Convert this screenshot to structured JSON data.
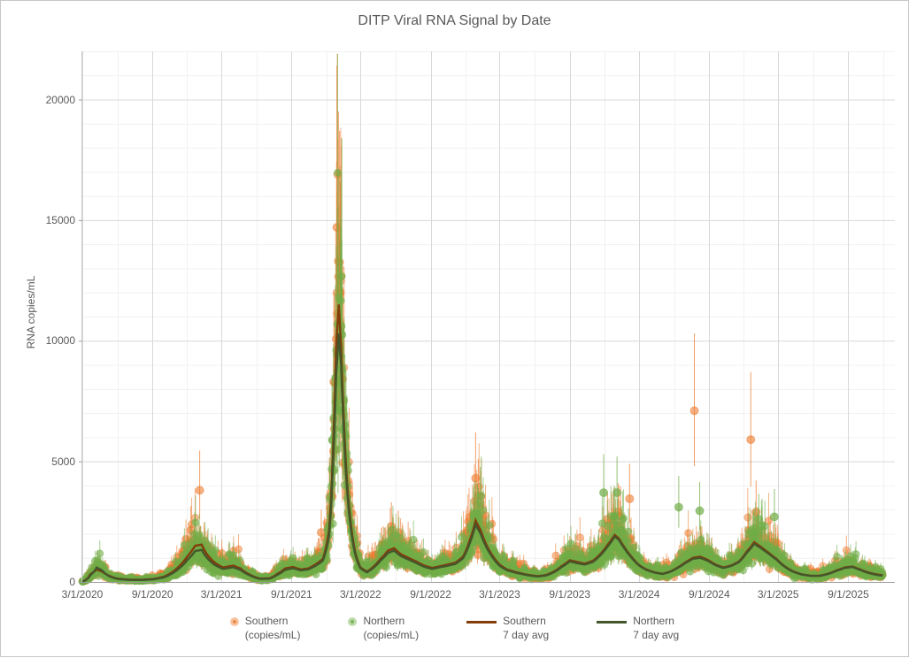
{
  "chart_data": {
    "type": "scatter",
    "title": "DITP Viral RNA Signal by Date",
    "ylabel": "RNA copies/mL",
    "xlabel": "",
    "ylim": [
      0,
      22000
    ],
    "y_ticks": [
      0,
      5000,
      10000,
      15000,
      20000
    ],
    "y_minor_step": 1000,
    "x_ticks": [
      "3/1/2020",
      "9/1/2020",
      "3/1/2021",
      "9/1/2021",
      "3/1/2022",
      "9/1/2022",
      "3/1/2023",
      "9/1/2023",
      "3/1/2024",
      "9/1/2024",
      "3/1/2025",
      "9/1/2025"
    ],
    "x_range": [
      "2020-03-01",
      "2026-01-01"
    ],
    "data_range": [
      "2020-03-01",
      "2025-11-30"
    ],
    "grid": {
      "major_color": "#D8D8D8",
      "minor_color": "#F1F1F1",
      "axis_color": "#9C9C9C",
      "y_axis_color": "#C9C9C9",
      "legend_position": "bottom",
      "grid_on": true
    },
    "text_color": "#595959",
    "series": [
      {
        "id": "southern_points",
        "name": "Southern (copies/mL)",
        "legend_lines": [
          "Southern",
          "(copies/mL)"
        ],
        "marker": "circle",
        "color": "#ED7D31",
        "fill_alpha": 0.5
      },
      {
        "id": "northern_points",
        "name": "Northern (copies/mL)",
        "legend_lines": [
          "Northern",
          "(copies/mL)"
        ],
        "marker": "circle",
        "color": "#70AD47",
        "fill_alpha": 0.6
      },
      {
        "id": "southern_avg",
        "name": "Southern 7 day avg",
        "legend_lines": [
          "Southern",
          "7 day avg"
        ],
        "marker": "line",
        "color": "#843C0B"
      },
      {
        "id": "northern_avg",
        "name": "Northern 7 day avg",
        "legend_lines": [
          "Northern",
          "7 day avg"
        ],
        "marker": "line",
        "color": "#45562B"
      }
    ],
    "error_bar_ratio": {
      "hi": 1.45,
      "lo": 0.672
    },
    "avg_breakpoints": [
      [
        "2020-03-01",
        25,
        20
      ],
      [
        "2020-03-12",
        120,
        100
      ],
      [
        "2020-03-22",
        320,
        280
      ],
      [
        "2020-04-08",
        520,
        600
      ],
      [
        "2020-04-22",
        430,
        480
      ],
      [
        "2020-05-10",
        260,
        240
      ],
      [
        "2020-06-01",
        140,
        125
      ],
      [
        "2020-07-01",
        95,
        85
      ],
      [
        "2020-08-01",
        90,
        80
      ],
      [
        "2020-09-01",
        120,
        105
      ],
      [
        "2020-10-01",
        220,
        190
      ],
      [
        "2020-10-20",
        380,
        330
      ],
      [
        "2020-11-10",
        650,
        560
      ],
      [
        "2020-12-01",
        1050,
        900
      ],
      [
        "2020-12-22",
        1500,
        1280
      ],
      [
        "2021-01-08",
        1550,
        1330
      ],
      [
        "2021-01-22",
        1150,
        1000
      ],
      [
        "2021-02-10",
        820,
        720
      ],
      [
        "2021-03-05",
        600,
        540
      ],
      [
        "2021-04-01",
        680,
        610
      ],
      [
        "2021-04-20",
        560,
        500
      ],
      [
        "2021-05-15",
        300,
        270
      ],
      [
        "2021-06-10",
        140,
        125
      ],
      [
        "2021-07-05",
        150,
        135
      ],
      [
        "2021-07-25",
        330,
        290
      ],
      [
        "2021-08-15",
        560,
        500
      ],
      [
        "2021-09-05",
        620,
        570
      ],
      [
        "2021-09-25",
        520,
        480
      ],
      [
        "2021-10-15",
        560,
        520
      ],
      [
        "2021-11-05",
        750,
        690
      ],
      [
        "2021-11-22",
        950,
        880
      ],
      [
        "2021-12-08",
        2100,
        1850
      ],
      [
        "2021-12-18",
        5200,
        4600
      ],
      [
        "2021-12-27",
        9800,
        8600
      ],
      [
        "2022-01-03",
        11500,
        10300
      ],
      [
        "2022-01-09",
        9800,
        9000
      ],
      [
        "2022-01-16",
        6800,
        6300
      ],
      [
        "2022-01-24",
        4300,
        4000
      ],
      [
        "2022-02-03",
        2500,
        2300
      ],
      [
        "2022-02-15",
        1250,
        1150
      ],
      [
        "2022-03-01",
        600,
        560
      ],
      [
        "2022-03-18",
        430,
        400
      ],
      [
        "2022-04-05",
        650,
        600
      ],
      [
        "2022-04-22",
        950,
        880
      ],
      [
        "2022-05-12",
        1300,
        1200
      ],
      [
        "2022-05-28",
        1400,
        1300
      ],
      [
        "2022-06-15",
        1150,
        1070
      ],
      [
        "2022-07-05",
        1000,
        930
      ],
      [
        "2022-07-25",
        850,
        790
      ],
      [
        "2022-08-15",
        680,
        630
      ],
      [
        "2022-09-05",
        580,
        540
      ],
      [
        "2022-09-25",
        650,
        610
      ],
      [
        "2022-10-15",
        720,
        670
      ],
      [
        "2022-11-05",
        800,
        750
      ],
      [
        "2022-11-25",
        1050,
        980
      ],
      [
        "2022-12-12",
        1700,
        1580
      ],
      [
        "2022-12-28",
        2550,
        2380
      ],
      [
        "2023-01-10",
        2150,
        2000
      ],
      [
        "2023-01-25",
        1550,
        1450
      ],
      [
        "2023-02-10",
        1100,
        1030
      ],
      [
        "2023-03-01",
        720,
        670
      ],
      [
        "2023-03-20",
        520,
        490
      ],
      [
        "2023-04-10",
        420,
        390
      ],
      [
        "2023-05-01",
        340,
        320
      ],
      [
        "2023-05-20",
        280,
        260
      ],
      [
        "2023-06-10",
        240,
        225
      ],
      [
        "2023-07-01",
        290,
        270
      ],
      [
        "2023-07-20",
        420,
        390
      ],
      [
        "2023-08-10",
        650,
        610
      ],
      [
        "2023-09-01",
        900,
        850
      ],
      [
        "2023-09-20",
        830,
        780
      ],
      [
        "2023-10-10",
        760,
        720
      ],
      [
        "2023-11-01",
        880,
        830
      ],
      [
        "2023-11-20",
        1150,
        1100
      ],
      [
        "2023-12-10",
        1550,
        1480
      ],
      [
        "2023-12-28",
        1950,
        1880
      ],
      [
        "2024-01-08",
        1800,
        1750
      ],
      [
        "2024-01-22",
        1450,
        1400
      ],
      [
        "2024-02-10",
        1050,
        1010
      ],
      [
        "2024-03-01",
        700,
        680
      ],
      [
        "2024-03-20",
        520,
        500
      ],
      [
        "2024-04-10",
        400,
        390
      ],
      [
        "2024-05-01",
        340,
        330
      ],
      [
        "2024-05-20",
        420,
        410
      ],
      [
        "2024-06-10",
        600,
        580
      ],
      [
        "2024-07-01",
        820,
        790
      ],
      [
        "2024-07-20",
        1000,
        960
      ],
      [
        "2024-08-08",
        1050,
        1000
      ],
      [
        "2024-08-28",
        920,
        880
      ],
      [
        "2024-09-18",
        720,
        690
      ],
      [
        "2024-10-08",
        600,
        580
      ],
      [
        "2024-10-28",
        680,
        660
      ],
      [
        "2024-11-18",
        850,
        820
      ],
      [
        "2024-12-08",
        1250,
        1200
      ],
      [
        "2024-12-28",
        1650,
        1580
      ],
      [
        "2025-01-15",
        1450,
        1400
      ],
      [
        "2025-02-05",
        1200,
        1160
      ],
      [
        "2025-02-25",
        950,
        920
      ],
      [
        "2025-03-18",
        650,
        630
      ],
      [
        "2025-04-08",
        450,
        430
      ],
      [
        "2025-05-01",
        320,
        310
      ],
      [
        "2025-05-25",
        260,
        250
      ],
      [
        "2025-06-18",
        260,
        250
      ],
      [
        "2025-07-10",
        340,
        330
      ],
      [
        "2025-08-01",
        480,
        460
      ],
      [
        "2025-08-22",
        600,
        580
      ],
      [
        "2025-09-12",
        640,
        620
      ],
      [
        "2025-10-02",
        520,
        500
      ],
      [
        "2025-10-22",
        400,
        380
      ],
      [
        "2025-11-12",
        320,
        300
      ],
      [
        "2025-11-30",
        280,
        260
      ]
    ],
    "outliers": [
      [
        "2020-12-11",
        "S",
        2150,
        1450,
        3150
      ],
      [
        "2021-01-03",
        "S",
        3800,
        2600,
        5450
      ],
      [
        "2021-11-18",
        "S",
        2050,
        1400,
        3000
      ],
      [
        "2021-12-21",
        "S",
        8300,
        5800,
        12000
      ],
      [
        "2021-12-29",
        "S",
        14700,
        10300,
        21400
      ],
      [
        "2022-01-02",
        "S",
        13300,
        9600,
        19500
      ],
      [
        "2022-01-05",
        "S",
        13250,
        9500,
        18700
      ],
      [
        "2022-01-07",
        "S",
        12000,
        8700,
        16600
      ],
      [
        "2022-05-21",
        "S",
        2300,
        1600,
        3300
      ],
      [
        "2022-06-08",
        "S",
        2050,
        1450,
        2950
      ],
      [
        "2022-12-28",
        "S",
        4300,
        3050,
        6200
      ],
      [
        "2023-01-04",
        "S",
        3600,
        2550,
        5100
      ],
      [
        "2023-12-09",
        "S",
        2600,
        1850,
        3700
      ],
      [
        "2024-01-06",
        "S",
        2900,
        2050,
        4100
      ],
      [
        "2024-02-05",
        "S",
        3450,
        2450,
        4900
      ],
      [
        "2024-07-24",
        "S",
        7100,
        4800,
        10300
      ],
      [
        "2024-12-19",
        "S",
        5900,
        3950,
        8700
      ],
      [
        "2025-01-02",
        "S",
        2900,
        2050,
        4200
      ],
      [
        "2021-12-31",
        "N",
        9400,
        7100,
        13100
      ],
      [
        "2022-01-09",
        "N",
        10600,
        8100,
        14700
      ],
      [
        "2022-01-11",
        "N",
        10250,
        7800,
        14200
      ],
      [
        "2023-11-29",
        "N",
        3700,
        2650,
        5300
      ],
      [
        "2024-01-03",
        "N",
        3700,
        2650,
        5200
      ],
      [
        "2024-06-13",
        "N",
        3100,
        2250,
        4400
      ],
      [
        "2024-08-07",
        "N",
        2950,
        2150,
        4150
      ],
      [
        "2025-01-09",
        "N",
        2600,
        1900,
        3650
      ],
      [
        "2025-02-19",
        "N",
        2700,
        1950,
        3850
      ]
    ]
  }
}
